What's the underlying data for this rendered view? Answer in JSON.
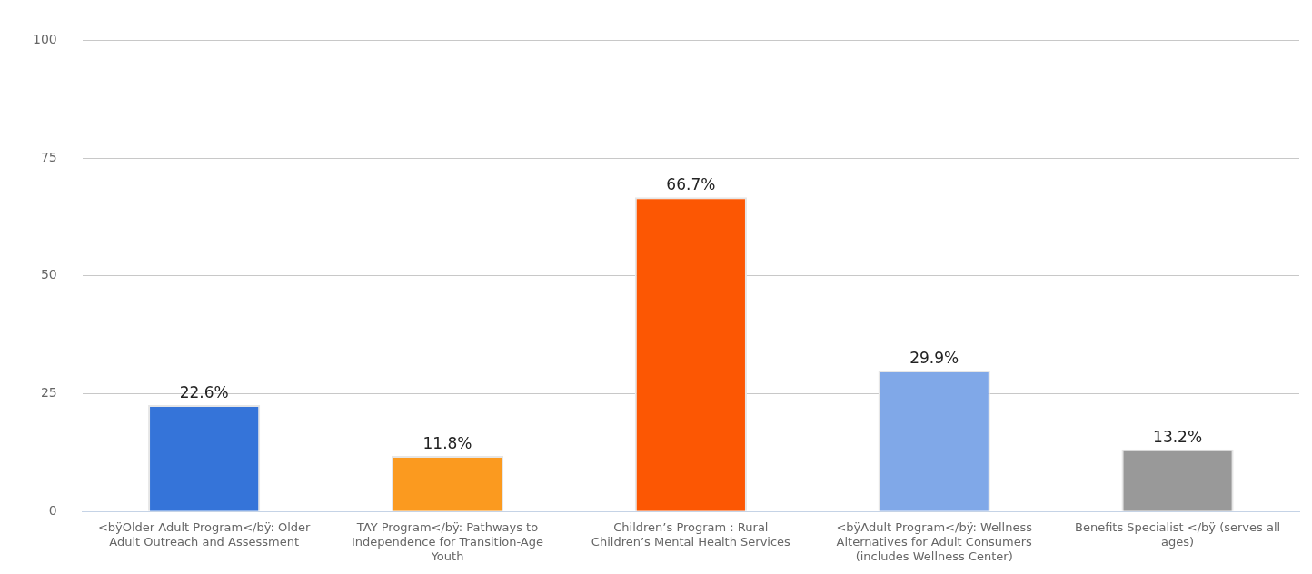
{
  "chart_data": {
    "type": "bar",
    "categories": [
      "<bÿOlder Adult Program</bÿ: Older Adult Outreach and Assessment",
      "TAY Program</bÿ: Pathways to Independence for Transition-Age Youth",
      "Children’s Program : Rural Children’s Mental Health Services",
      "<bÿAdult Program</bÿ: Wellness Alternatives for Adult Consumers (includes Wellness Center)",
      "Benefits Specialist </bÿ (serves all ages)"
    ],
    "values": [
      22.6,
      11.8,
      66.7,
      29.9,
      13.2
    ],
    "colors": [
      "#3574d9",
      "#fb9a1f",
      "#fc5703",
      "#80a8e8",
      "#999999"
    ],
    "value_labels": [
      "22.6%",
      "11.8%",
      "66.7%",
      "29.9%",
      "13.2%"
    ],
    "ylim": [
      0,
      100
    ],
    "yticks": [
      0,
      25,
      50,
      75,
      100
    ],
    "grid": "y",
    "legend": false
  }
}
